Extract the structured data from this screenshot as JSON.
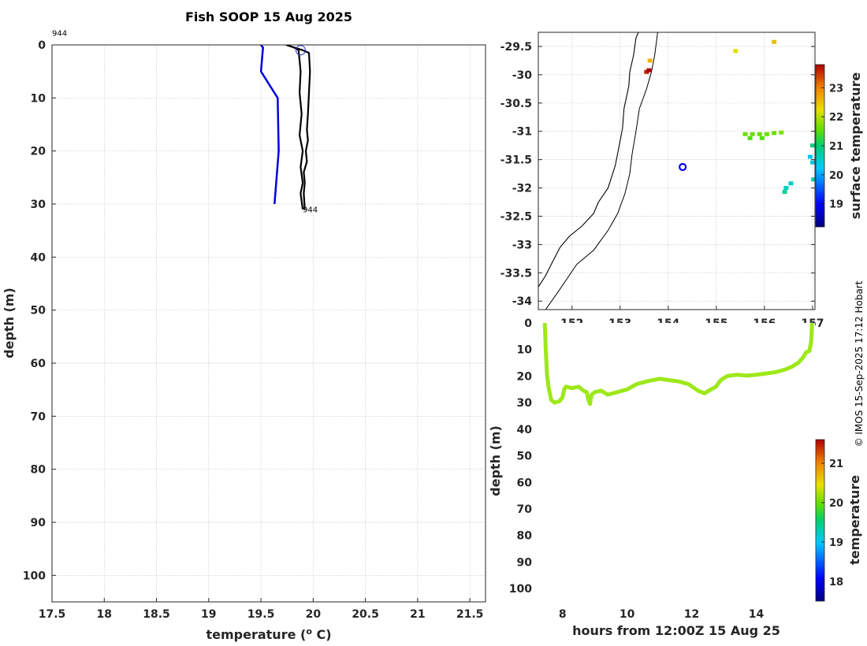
{
  "title": "Fish SOOP 15 Aug 2025",
  "copyright": "© IMOS 15-Sep-2025 17:12 Hobart",
  "chart_data": [
    {
      "type": "line",
      "id": "profile",
      "xlabel": "temperature (",
      "xlabel_sup": "o",
      "xlabel_end": " C)",
      "ylabel": "depth (m)",
      "xlim": [
        17.5,
        21.65
      ],
      "ylim": [
        0,
        105
      ],
      "y_reversed": true,
      "xticks": [
        "17.5",
        "18",
        "18.5",
        "19",
        "19.5",
        "20",
        "20.5",
        "21",
        "21.5"
      ],
      "yticks": [
        "0",
        "10",
        "20",
        "30",
        "40",
        "50",
        "60",
        "70",
        "80",
        "90",
        "100"
      ],
      "grid": true,
      "annotations": [
        {
          "text": "944",
          "x": 17.5,
          "y": -2.3
        },
        {
          "text": "944",
          "x": 19.9,
          "y": 31
        }
      ],
      "series": [
        {
          "color": "#0000dd",
          "x": [
            19.5,
            19.52,
            19.5,
            19.66,
            19.67,
            19.63
          ],
          "y": [
            0,
            0.5,
            5,
            10,
            20,
            30
          ]
        },
        {
          "color": "#000000",
          "x": [
            19.74,
            19.82,
            19.9,
            19.96,
            19.97,
            19.96,
            19.95,
            19.94,
            19.95,
            19.93,
            19.94,
            19.91,
            19.92,
            19.91,
            19.92
          ],
          "y": [
            0,
            0.5,
            1,
            1.5,
            5,
            9,
            13,
            16,
            18,
            20,
            22,
            24,
            26,
            28,
            31
          ]
        },
        {
          "color": "#000000",
          "x": [
            19.82,
            19.86,
            19.88,
            19.87,
            19.89,
            19.87,
            19.9,
            19.88,
            19.9,
            19.88,
            19.9
          ],
          "y": [
            0.5,
            1,
            5,
            9,
            13,
            17,
            20,
            23,
            26,
            28,
            31
          ]
        }
      ],
      "marker_circle": {
        "x": 19.88,
        "y": 1
      }
    },
    {
      "type": "scatter",
      "id": "map",
      "xlim": [
        151.3,
        157.05
      ],
      "ylim": [
        -34.15,
        -29.25
      ],
      "xticks": [
        "152",
        "153",
        "154",
        "155",
        "156",
        "157"
      ],
      "yticks": [
        "-29.5",
        "-30",
        "-30.5",
        "-31",
        "-31.5",
        "-32",
        "-32.5",
        "-33",
        "-33.5",
        "-34"
      ],
      "grid": true,
      "colorbar": {
        "label": "surface temperature",
        "min": 18.2,
        "max": 23.8,
        "ticks": [
          "19",
          "20",
          "21",
          "22",
          "23"
        ]
      },
      "location": {
        "lon": 154.3,
        "lat": -31.63
      },
      "coastline": [
        [
          151.3,
          -33.75
        ],
        [
          151.45,
          -33.55
        ],
        [
          151.6,
          -33.3
        ],
        [
          151.75,
          -33.05
        ],
        [
          151.95,
          -32.85
        ],
        [
          152.2,
          -32.68
        ],
        [
          152.45,
          -32.45
        ],
        [
          152.55,
          -32.25
        ],
        [
          152.75,
          -32.0
        ],
        [
          152.9,
          -31.6
        ],
        [
          152.97,
          -31.3
        ],
        [
          153.05,
          -30.95
        ],
        [
          153.08,
          -30.6
        ],
        [
          153.18,
          -30.2
        ],
        [
          153.2,
          -29.95
        ],
        [
          153.28,
          -29.65
        ],
        [
          153.33,
          -29.35
        ],
        [
          153.38,
          -29.25
        ]
      ],
      "isobath": [
        [
          151.45,
          -34.15
        ],
        [
          151.7,
          -33.85
        ],
        [
          151.9,
          -33.6
        ],
        [
          152.1,
          -33.35
        ],
        [
          152.45,
          -33.1
        ],
        [
          152.75,
          -32.75
        ],
        [
          152.95,
          -32.45
        ],
        [
          153.1,
          -32.1
        ],
        [
          153.2,
          -31.75
        ],
        [
          153.25,
          -31.4
        ],
        [
          153.33,
          -31.0
        ],
        [
          153.4,
          -30.6
        ],
        [
          153.55,
          -30.25
        ],
        [
          153.65,
          -29.95
        ],
        [
          153.72,
          -29.65
        ],
        [
          153.78,
          -29.25
        ]
      ],
      "points": [
        {
          "lon": 153.55,
          "lat": -29.95,
          "value": 23.6
        },
        {
          "lon": 153.6,
          "lat": -29.92,
          "value": 23.8
        },
        {
          "lon": 153.62,
          "lat": -29.75,
          "value": 22.6
        },
        {
          "lon": 155.4,
          "lat": -29.58,
          "value": 22.2
        },
        {
          "lon": 156.2,
          "lat": -29.42,
          "value": 22.5
        },
        {
          "lon": 155.6,
          "lat": -31.05,
          "value": 21.6
        },
        {
          "lon": 155.75,
          "lat": -31.05,
          "value": 21.6
        },
        {
          "lon": 155.9,
          "lat": -31.05,
          "value": 21.6
        },
        {
          "lon": 156.05,
          "lat": -31.05,
          "value": 21.6
        },
        {
          "lon": 156.2,
          "lat": -31.03,
          "value": 21.6
        },
        {
          "lon": 156.35,
          "lat": -31.02,
          "value": 21.7
        },
        {
          "lon": 155.7,
          "lat": -31.12,
          "value": 21.5
        },
        {
          "lon": 155.95,
          "lat": -31.12,
          "value": 21.5
        },
        {
          "lon": 156.45,
          "lat": -32.0,
          "value": 20.6
        },
        {
          "lon": 156.55,
          "lat": -31.92,
          "value": 20.5
        },
        {
          "lon": 156.42,
          "lat": -32.07,
          "value": 20.8
        },
        {
          "lon": 156.95,
          "lat": -31.45,
          "value": 20.3
        },
        {
          "lon": 157.0,
          "lat": -31.55,
          "value": 20.4
        },
        {
          "lon": 157.02,
          "lat": -31.85,
          "value": 20.7
        },
        {
          "lon": 157.0,
          "lat": -31.25,
          "value": 20.9
        }
      ]
    },
    {
      "type": "line",
      "id": "track",
      "xlabel": "hours from 12:00Z 15 Aug 25",
      "ylabel": "depth (m)",
      "xlim": [
        7.25,
        15.82
      ],
      "ylim": [
        0,
        105
      ],
      "y_reversed": true,
      "xticks": [
        "8",
        "10",
        "12",
        "14"
      ],
      "yticks": [
        "0",
        "10",
        "20",
        "30",
        "40",
        "50",
        "60",
        "70",
        "80",
        "90",
        "100"
      ],
      "colorbar": {
        "label": "temperature",
        "min": 17.5,
        "max": 21.6,
        "ticks": [
          "18",
          "19",
          "20",
          "21"
        ]
      },
      "series": [
        {
          "color": "#9de81a",
          "x": [
            7.45,
            7.48,
            7.52,
            7.58,
            7.65,
            7.75,
            7.9,
            8.0,
            8.05,
            8.1,
            8.3,
            8.5,
            8.65,
            8.75,
            8.8,
            8.85,
            8.9,
            9.0,
            9.2,
            9.4,
            9.7,
            10.0,
            10.3,
            10.6,
            11.0,
            11.3,
            11.6,
            11.9,
            12.2,
            12.4,
            12.6,
            12.75,
            12.9,
            13.1,
            13.4,
            13.7,
            14.0,
            14.3,
            14.6,
            14.9,
            15.1,
            15.3,
            15.45,
            15.55,
            15.65,
            15.7,
            15.72,
            15.73
          ],
          "y": [
            0,
            10,
            20,
            25,
            29,
            30,
            29.5,
            28,
            25,
            24,
            24.5,
            24,
            25.5,
            26,
            29,
            30.5,
            27,
            26,
            25.5,
            27,
            26,
            25,
            23,
            22,
            21,
            21.5,
            22,
            23,
            25.5,
            26.5,
            25,
            24,
            21.5,
            20,
            19.5,
            19.8,
            19.5,
            19,
            18.5,
            17.5,
            16.5,
            15,
            13,
            11,
            10.5,
            7,
            3,
            0
          ]
        }
      ]
    }
  ]
}
